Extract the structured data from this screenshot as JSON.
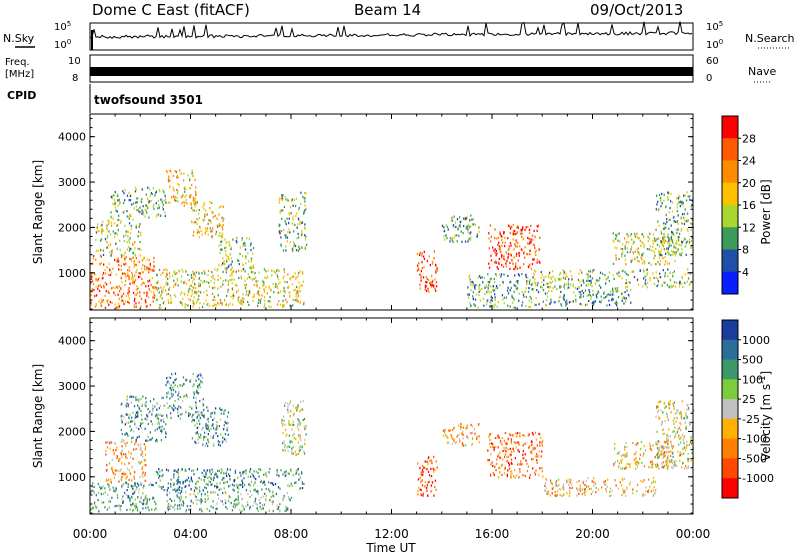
{
  "header": {
    "radar": "Dome C East (fitACF)",
    "beam": "Beam 14",
    "date": "09/Oct/2013"
  },
  "noise_panel": {
    "left_label": "N.Sky",
    "right_label": "N.Search",
    "ticks": [
      "10^5",
      "10^0"
    ]
  },
  "freq_panel": {
    "left_label_line1": "Freq.",
    "left_label_line2": "[MHz]",
    "left_ticks": [
      "10",
      "8"
    ],
    "right_label": "Nave",
    "right_ticks": [
      "60",
      "0"
    ]
  },
  "cpid_panel": {
    "label": "CPID",
    "program": "twofsound 3501"
  },
  "chart_data": [
    {
      "type": "heatmap",
      "title": "",
      "ylabel": "Slant Range [km]",
      "ylim": [
        180,
        4500
      ],
      "yticks": [
        1000,
        2000,
        3000,
        4000
      ],
      "xlabel": "",
      "xlim": [
        0,
        24
      ],
      "colorbar": {
        "label": "Power [dB]",
        "ticks": [
          "28",
          "24",
          "20",
          "16",
          "12",
          "8",
          "4"
        ],
        "colors": [
          "#ff0000",
          "#ff5a00",
          "#ff8c00",
          "#ffc000",
          "#a8d830",
          "#3c9a5a",
          "#1f4fa8",
          "#0a1fff"
        ]
      },
      "echo_regions": [
        {
          "t0": 0.0,
          "t1": 2.6,
          "r0": 250,
          "r1": 1400,
          "level": 0.75
        },
        {
          "t0": 0.2,
          "t1": 2.0,
          "r0": 1400,
          "r1": 2200,
          "level": 0.45
        },
        {
          "t0": 0.8,
          "t1": 3.0,
          "r0": 2200,
          "r1": 2900,
          "level": 0.35
        },
        {
          "t0": 3.0,
          "t1": 4.2,
          "r0": 2500,
          "r1": 3300,
          "level": 0.55
        },
        {
          "t0": 4.0,
          "t1": 5.3,
          "r0": 1800,
          "r1": 2600,
          "level": 0.55
        },
        {
          "t0": 2.6,
          "t1": 8.5,
          "r0": 250,
          "r1": 1100,
          "level": 0.5
        },
        {
          "t0": 5.0,
          "t1": 6.5,
          "r0": 1100,
          "r1": 1800,
          "level": 0.4
        },
        {
          "t0": 7.5,
          "t1": 8.6,
          "r0": 1500,
          "r1": 2800,
          "level": 0.4
        },
        {
          "t0": 13.0,
          "t1": 13.8,
          "r0": 600,
          "r1": 1500,
          "level": 0.85
        },
        {
          "t0": 14.0,
          "t1": 15.5,
          "r0": 1700,
          "r1": 2300,
          "level": 0.35
        },
        {
          "t0": 15.8,
          "t1": 17.9,
          "r0": 1100,
          "r1": 2100,
          "level": 0.85
        },
        {
          "t0": 15.0,
          "t1": 17.5,
          "r0": 250,
          "r1": 1000,
          "level": 0.3
        },
        {
          "t0": 17.5,
          "t1": 23.9,
          "r0": 700,
          "r1": 1100,
          "level": 0.4
        },
        {
          "t0": 17.5,
          "t1": 21.5,
          "r0": 300,
          "r1": 700,
          "level": 0.3
        },
        {
          "t0": 20.8,
          "t1": 23.3,
          "r0": 1200,
          "r1": 1900,
          "level": 0.5
        },
        {
          "t0": 22.5,
          "t1": 24.0,
          "r0": 1400,
          "r1": 2800,
          "level": 0.35
        }
      ]
    },
    {
      "type": "heatmap",
      "title": "",
      "ylabel": "Slant Range [km]",
      "ylim": [
        180,
        4500
      ],
      "yticks": [
        1000,
        2000,
        3000,
        4000
      ],
      "xlabel": "Time UT",
      "xlim": [
        0,
        24
      ],
      "xticks": [
        "00:00",
        "04:00",
        "08:00",
        "12:00",
        "16:00",
        "20:00",
        "00:00"
      ],
      "colorbar": {
        "label": "Velocity [m s^-1]",
        "ticks": [
          "1000",
          "500",
          "100",
          "25",
          "-25",
          "-100",
          "-500",
          "-1000"
        ],
        "colors": [
          "#1a3c9c",
          "#2c6e9a",
          "#3c9a6a",
          "#7ccc3c",
          "#c0c0c0",
          "#ffb000",
          "#ff8000",
          "#ff4800",
          "#ff0000"
        ]
      },
      "echo_regions": [
        {
          "t0": 0.0,
          "t1": 2.6,
          "r0": 250,
          "r1": 900,
          "level": 0.72
        },
        {
          "t0": 0.6,
          "t1": 2.2,
          "r0": 900,
          "r1": 1800,
          "level": 0.35
        },
        {
          "t0": 1.2,
          "t1": 3.0,
          "r0": 1800,
          "r1": 2800,
          "level": 0.7
        },
        {
          "t0": 3.0,
          "t1": 4.5,
          "r0": 2300,
          "r1": 3300,
          "level": 0.72
        },
        {
          "t0": 4.0,
          "t1": 5.5,
          "r0": 1700,
          "r1": 2600,
          "level": 0.72
        },
        {
          "t0": 2.6,
          "t1": 8.5,
          "r0": 700,
          "r1": 1200,
          "level": 0.78
        },
        {
          "t0": 3.0,
          "t1": 8.0,
          "r0": 250,
          "r1": 700,
          "level": 0.65
        },
        {
          "t0": 7.6,
          "t1": 8.6,
          "r0": 1500,
          "r1": 2700,
          "level": 0.55
        },
        {
          "t0": 13.0,
          "t1": 13.8,
          "r0": 600,
          "r1": 1500,
          "level": 0.2
        },
        {
          "t0": 14.0,
          "t1": 15.5,
          "r0": 1700,
          "r1": 2200,
          "level": 0.35
        },
        {
          "t0": 15.8,
          "t1": 18.0,
          "r0": 1000,
          "r1": 2000,
          "level": 0.2
        },
        {
          "t0": 18.0,
          "t1": 22.5,
          "r0": 600,
          "r1": 1000,
          "level": 0.38
        },
        {
          "t0": 20.8,
          "t1": 23.3,
          "r0": 1200,
          "r1": 1800,
          "level": 0.4
        },
        {
          "t0": 22.5,
          "t1": 24.0,
          "r0": 1200,
          "r1": 2700,
          "level": 0.5
        }
      ]
    }
  ]
}
